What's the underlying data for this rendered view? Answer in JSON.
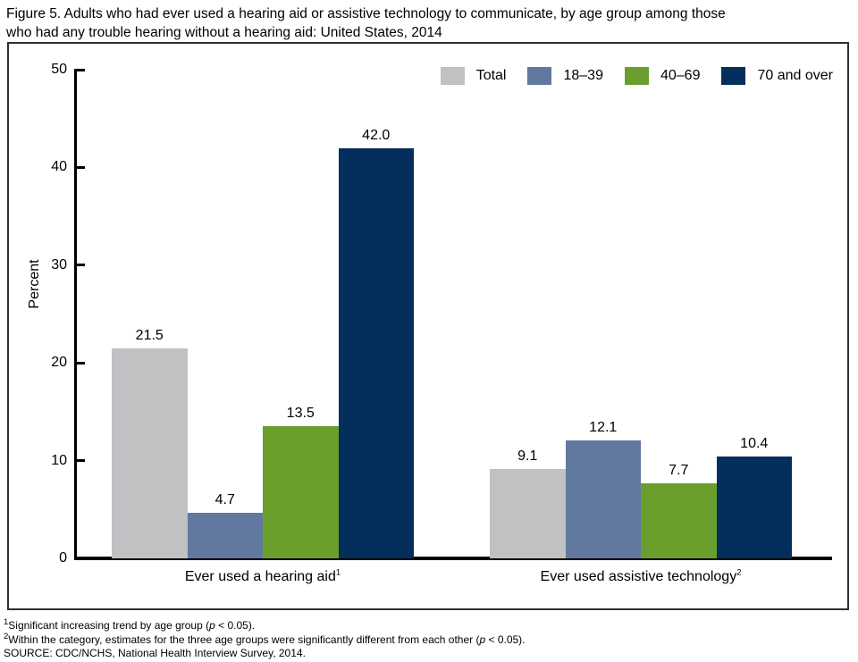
{
  "figure": {
    "title_line1": "Figure 5. Adults who had ever used a hearing aid or assistive technology to communicate, by age group among those",
    "title_line2": "who had any trouble hearing without a hearing aid: United States, 2014"
  },
  "chart_data": {
    "type": "bar",
    "categories": [
      "Ever used a hearing aid",
      "Ever used assistive technology"
    ],
    "category_sups": [
      "1",
      "2"
    ],
    "series": [
      {
        "name": "Total",
        "color": "#bfc1c3",
        "values": [
          21.5,
          9.1
        ]
      },
      {
        "name": "18–39",
        "color": "#61789f",
        "values": [
          4.7,
          12.1
        ]
      },
      {
        "name": "40–69",
        "color": "#6b9f2d",
        "values": [
          13.5,
          7.7
        ]
      },
      {
        "name": "70 and over",
        "color": "#042e5b",
        "values": [
          42.0,
          10.4
        ]
      }
    ],
    "xlabel": "",
    "ylabel": "Percent",
    "ylim": [
      0,
      50
    ],
    "yticks": [
      0,
      10,
      20,
      30,
      40,
      50
    ],
    "legend_position": "top-right",
    "grid": false,
    "value_label_decimals": 1
  },
  "footnotes": [
    {
      "sup": "1",
      "text": "Significant increasing trend by age group (p < 0.05)."
    },
    {
      "sup": "2",
      "text": "Within the category, estimates for the three age groups were significantly different from each other (p < 0.05)."
    },
    {
      "sup": "",
      "text": "SOURCE: CDC/NCHS, National Health Interview Survey, 2014."
    }
  ]
}
